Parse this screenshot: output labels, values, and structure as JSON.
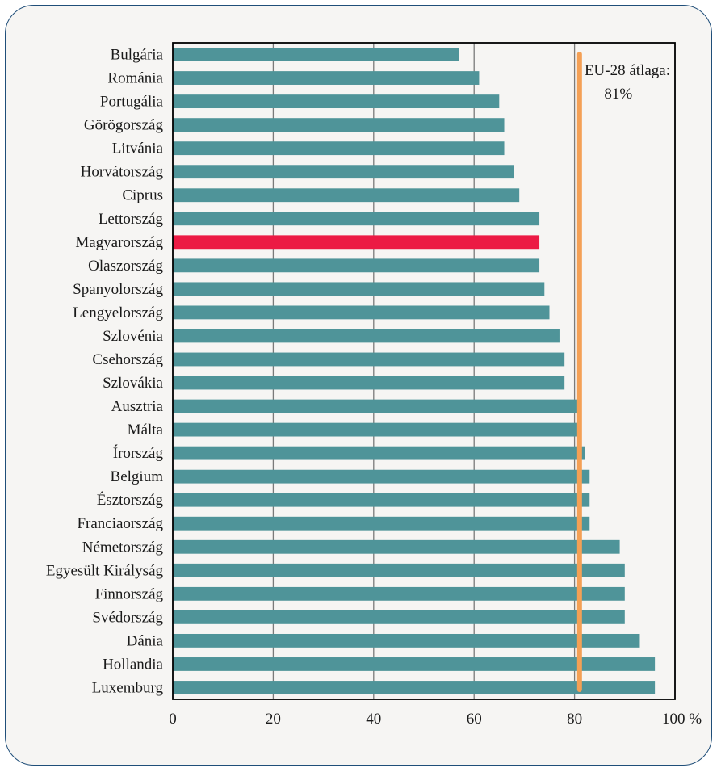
{
  "chart_data": {
    "type": "bar",
    "orientation": "horizontal",
    "categories": [
      "Bulgária",
      "Románia",
      "Portugália",
      "Görögország",
      "Litvánia",
      "Horvátország",
      "Ciprus",
      "Lettország",
      "Magyarország",
      "Olaszország",
      "Spanyolország",
      "Lengyelország",
      "Szlovénia",
      "Csehország",
      "Szlovákia",
      "Ausztria",
      "Málta",
      "Írország",
      "Belgium",
      "Észtország",
      "Franciaország",
      "Németország",
      "Egyesült Királyság",
      "Finnország",
      "Svédország",
      "Dánia",
      "Hollandia",
      "Luxemburg"
    ],
    "values": [
      57,
      61,
      65,
      66,
      66,
      68,
      69,
      73,
      73,
      73,
      74,
      75,
      77,
      78,
      78,
      81,
      81,
      82,
      83,
      83,
      83,
      89,
      90,
      90,
      90,
      93,
      96,
      96
    ],
    "highlight": "Magyarország",
    "bar_color": "#4f9499",
    "highlight_color": "#ec1a44",
    "xlim": [
      0,
      100
    ],
    "x_ticks": [
      "0",
      "20",
      "40",
      "60",
      "80",
      "100 %"
    ],
    "x_tick_values": [
      0,
      20,
      40,
      60,
      80,
      100
    ],
    "grid": true,
    "reference_line": {
      "value": 81,
      "color": "#f4a055",
      "label_line1": "EU-28 átlaga:",
      "label_line2": "81%"
    }
  }
}
